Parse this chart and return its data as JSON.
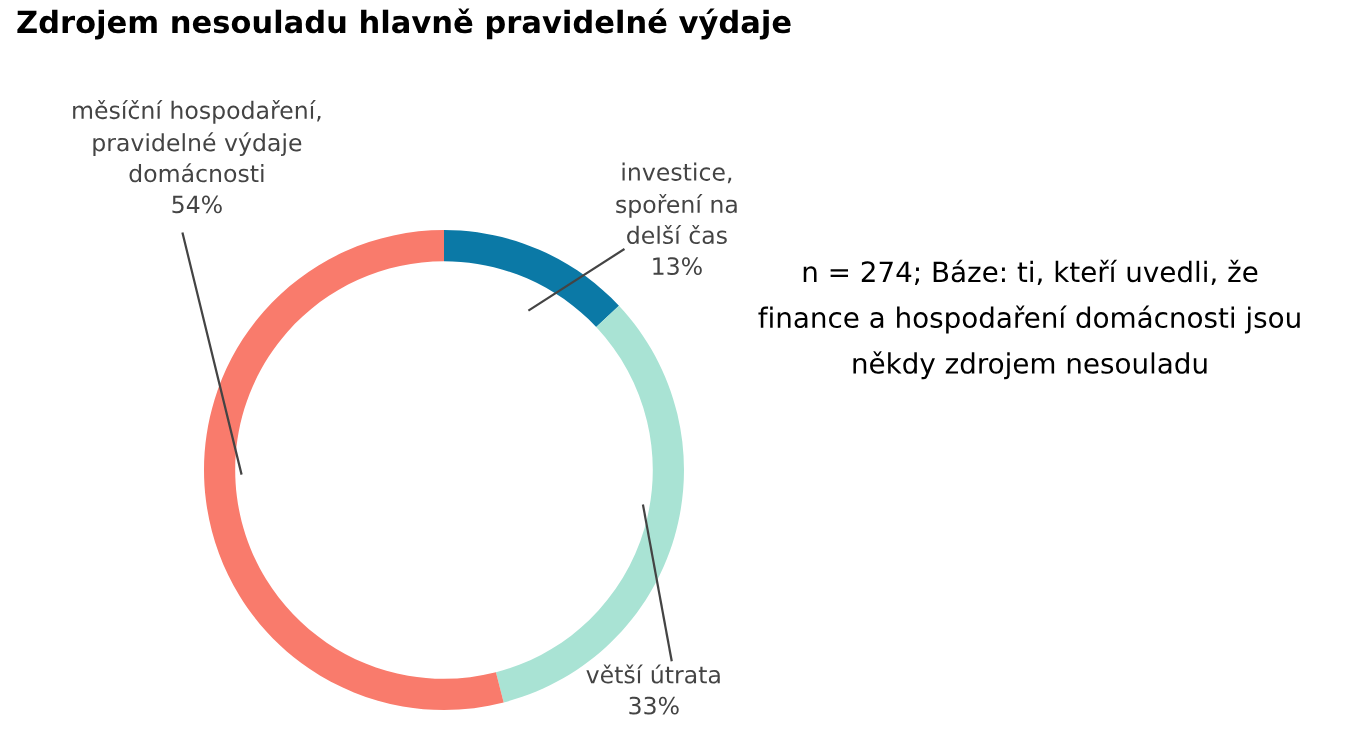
{
  "chart_data": {
    "type": "donut",
    "title": "Zdrojem nesouladu hlavně pravidelné výdaje",
    "categories": [
      "investice,\nspoření na\ndelší čas",
      "větší útrata",
      "měsíční hospodaření,\npravidelné výdaje\ndomácnosti"
    ],
    "values": [
      13,
      33,
      54
    ],
    "colors": [
      "#0b79a6",
      "#a9e3d4",
      "#f97b6c"
    ],
    "value_labels": [
      "13%",
      "33%",
      "54%"
    ],
    "annotations": [
      "n = 274; Báze: ti, kteří uvedli, že\nfinance a hospodaření domácnosti jsou\nněkdy zdrojem nesouladu"
    ]
  }
}
